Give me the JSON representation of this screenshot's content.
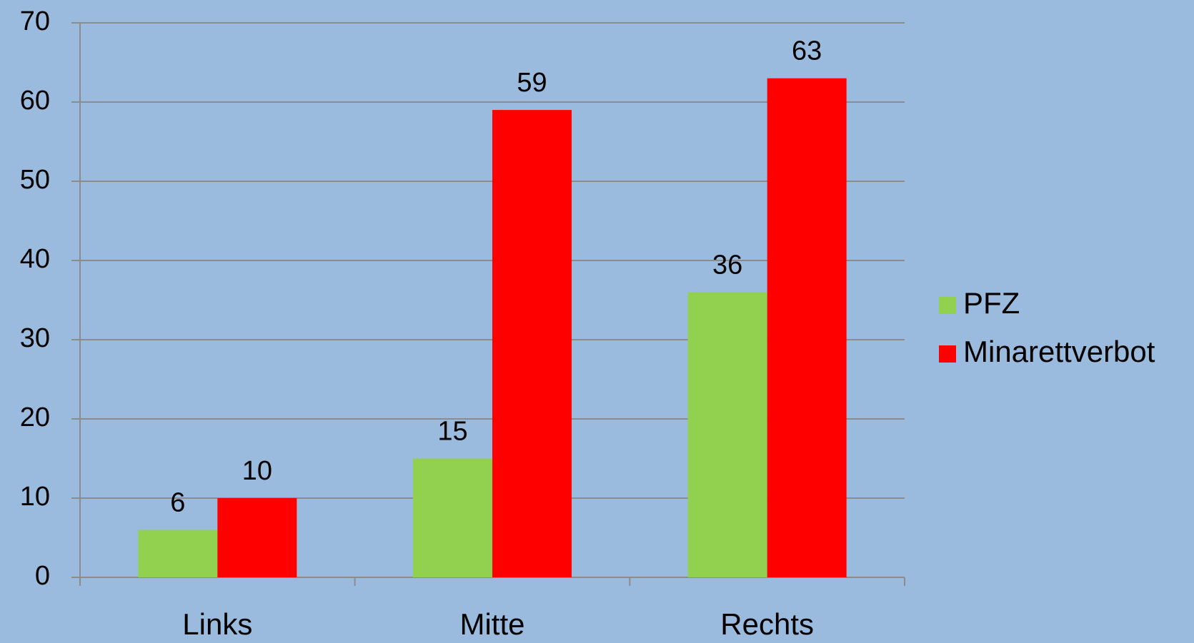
{
  "chart_data": {
    "type": "bar",
    "categories": [
      "Links",
      "Mitte",
      "Rechts"
    ],
    "series": [
      {
        "name": "PFZ",
        "color": "#92d050",
        "values": [
          6,
          15,
          36
        ]
      },
      {
        "name": "Minarettverbot",
        "color": "#ff0000",
        "values": [
          10,
          59,
          63
        ]
      }
    ],
    "ylim": [
      0,
      70
    ],
    "yticks": [
      0,
      10,
      20,
      30,
      40,
      50,
      60,
      70
    ],
    "grid": true,
    "legend": "right"
  }
}
